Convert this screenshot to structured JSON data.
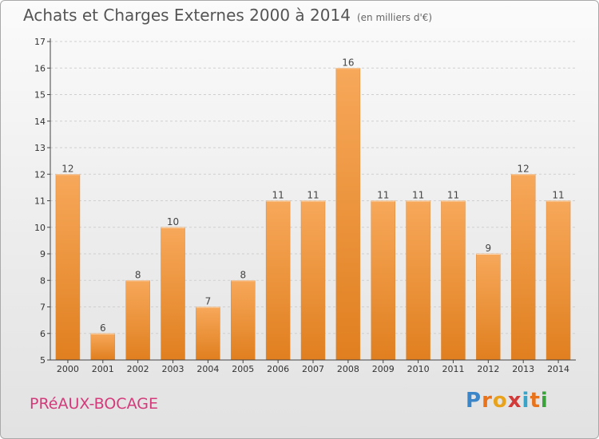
{
  "title": "Achats et Charges Externes 2000 à 2014",
  "subtitle": "(en milliers d'€)",
  "commune": "PRéAUX-BOCAGE",
  "logo": {
    "letters": [
      "P",
      "r",
      "o",
      "x",
      "i",
      "t",
      "i"
    ],
    "colors": [
      "#3a86c8",
      "#e8731b",
      "#e8a21b",
      "#d33a3a",
      "#3aa3c8",
      "#e8731b",
      "#3aa33a"
    ]
  },
  "colors": {
    "bar_light": "#f7a85a",
    "bar_dark": "#e07f1f",
    "grid": "#cfcfcf",
    "axis": "#444444"
  },
  "chart_data": {
    "type": "bar",
    "categories": [
      "2000",
      "2001",
      "2002",
      "2003",
      "2004",
      "2005",
      "2006",
      "2007",
      "2008",
      "2009",
      "2010",
      "2011",
      "2012",
      "2013",
      "2014"
    ],
    "values": [
      12,
      6,
      8,
      10,
      7,
      8,
      11,
      11,
      16,
      11,
      11,
      11,
      9,
      12,
      11
    ],
    "ylim": [
      5,
      17
    ],
    "yticks": [
      5,
      6,
      7,
      8,
      9,
      10,
      11,
      12,
      13,
      14,
      15,
      16,
      17
    ],
    "grid": true,
    "title": "Achats et Charges Externes 2000 à 2014",
    "xlabel": "",
    "ylabel": ""
  }
}
